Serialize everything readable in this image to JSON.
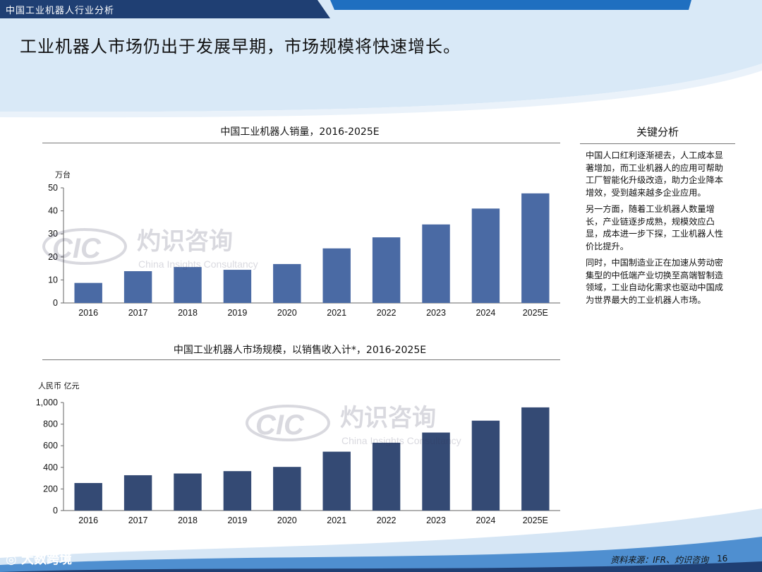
{
  "header": {
    "section_label": "中国工业机器人行业分析"
  },
  "slide": {
    "title": "工业机器人市场仍出于发展早期，市场规模将快速增长。"
  },
  "watermark": {
    "cn": "灼识咨询",
    "en": "China Insights Consultancy",
    "logo": "CIC"
  },
  "panel": {
    "title": "关键分析",
    "paragraphs": [
      "中国人口红利逐渐褪去，人工成本显著增加，而工业机器人的应用可帮助工厂智能化升级改造，助力企业降本增效，受到越来越多企业应用。",
      "另一方面，随着工业机器人数量增长，产业链逐步成熟，规模效应凸显，成本进一步下探，工业机器人性价比提升。",
      "同时，中国制造业正在加速从劳动密集型的中低端产业切换至高端智制造领域，工业自动化需求也驱动中国成为世界最大的工业机器人市场。"
    ]
  },
  "footer": {
    "source": "资料来源：IFR、灼识咨询",
    "page": "16",
    "brand": "大数跨境"
  },
  "colors": {
    "bar1": "#4a6aa4",
    "bar2": "#344a74",
    "header": "#1f3f73",
    "band": "#d9e9f7"
  },
  "chart_data": [
    {
      "type": "bar",
      "title": "中国工业机器人销量，2016-2025E",
      "ylabel": "万台",
      "categories": [
        "2016",
        "2017",
        "2018",
        "2019",
        "2020",
        "2021",
        "2022",
        "2023",
        "2024",
        "2025E"
      ],
      "values": [
        8.7,
        13.8,
        15.6,
        14.4,
        16.9,
        23.7,
        28.5,
        34.1,
        41.0,
        47.6
      ],
      "ylim": [
        0,
        50
      ],
      "yticks": [
        "0",
        "10",
        "20",
        "30",
        "40",
        "50"
      ],
      "grid": false
    },
    {
      "type": "bar",
      "title": "中国工业机器人市场规模，以销售收入计*，2016-2025E",
      "ylabel": "人民币 亿元",
      "categories": [
        "2016",
        "2017",
        "2018",
        "2019",
        "2020",
        "2021",
        "2022",
        "2023",
        "2024",
        "2025E"
      ],
      "values": [
        255,
        327,
        343,
        365,
        404,
        545,
        628,
        722,
        832,
        955
      ],
      "ylim": [
        0,
        1000
      ],
      "yticks": [
        "0",
        "200",
        "400",
        "600",
        "800",
        "1,000"
      ],
      "grid": false
    }
  ]
}
